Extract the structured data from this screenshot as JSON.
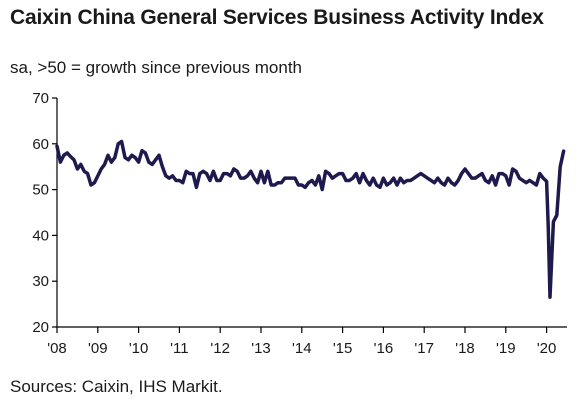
{
  "title": "Caixin China General Services Business Activity Index",
  "subtitle": "sa, >50 = growth since previous month",
  "source": "Sources: Caixin, IHS Markit.",
  "colors": {
    "line": "#1f1a4d",
    "axis": "#000000",
    "text": "#1a1a1a"
  },
  "chart_data": {
    "type": "line",
    "title": "Caixin China General Services Business Activity Index",
    "subtitle": "sa, >50 = growth since previous month",
    "xlabel": "",
    "ylabel": "",
    "xlim": [
      2008.0,
      2020.5
    ],
    "ylim": [
      20,
      70
    ],
    "yticks": [
      20,
      30,
      40,
      50,
      60,
      70
    ],
    "xticks": [
      {
        "value": 2008,
        "label": "'08"
      },
      {
        "value": 2009,
        "label": "'09"
      },
      {
        "value": 2010,
        "label": "'10"
      },
      {
        "value": 2011,
        "label": "'11"
      },
      {
        "value": 2012,
        "label": "'12"
      },
      {
        "value": 2013,
        "label": "'13"
      },
      {
        "value": 2014,
        "label": "'14"
      },
      {
        "value": 2015,
        "label": "'15"
      },
      {
        "value": 2016,
        "label": "'16"
      },
      {
        "value": 2017,
        "label": "'17"
      },
      {
        "value": 2018,
        "label": "'18"
      },
      {
        "value": 2019,
        "label": "'19"
      },
      {
        "value": 2020,
        "label": "'20"
      }
    ],
    "grid": false,
    "series": [
      {
        "points": [
          [
            2008.0,
            59.5
          ],
          [
            2008.083,
            56.0
          ],
          [
            2008.167,
            57.5
          ],
          [
            2008.25,
            58.0
          ],
          [
            2008.333,
            57.2
          ],
          [
            2008.417,
            56.5
          ],
          [
            2008.5,
            54.5
          ],
          [
            2008.583,
            55.5
          ],
          [
            2008.667,
            54.0
          ],
          [
            2008.75,
            53.5
          ],
          [
            2008.833,
            51.0
          ],
          [
            2008.917,
            51.5
          ],
          [
            2009.0,
            53.0
          ],
          [
            2009.083,
            54.5
          ],
          [
            2009.167,
            55.5
          ],
          [
            2009.25,
            57.5
          ],
          [
            2009.333,
            56.0
          ],
          [
            2009.417,
            57.0
          ],
          [
            2009.5,
            60.0
          ],
          [
            2009.583,
            60.5
          ],
          [
            2009.667,
            57.0
          ],
          [
            2009.75,
            56.5
          ],
          [
            2009.833,
            57.5
          ],
          [
            2009.917,
            57.0
          ],
          [
            2010.0,
            56.0
          ],
          [
            2010.083,
            58.5
          ],
          [
            2010.167,
            58.0
          ],
          [
            2010.25,
            56.0
          ],
          [
            2010.333,
            55.5
          ],
          [
            2010.417,
            56.5
          ],
          [
            2010.5,
            57.5
          ],
          [
            2010.583,
            55.0
          ],
          [
            2010.667,
            53.0
          ],
          [
            2010.75,
            52.5
          ],
          [
            2010.833,
            53.0
          ],
          [
            2010.917,
            52.0
          ],
          [
            2011.0,
            52.0
          ],
          [
            2011.083,
            51.5
          ],
          [
            2011.167,
            54.0
          ],
          [
            2011.25,
            53.5
          ],
          [
            2011.333,
            53.5
          ],
          [
            2011.417,
            50.5
          ],
          [
            2011.5,
            53.5
          ],
          [
            2011.583,
            54.0
          ],
          [
            2011.667,
            53.5
          ],
          [
            2011.75,
            52.0
          ],
          [
            2011.833,
            54.0
          ],
          [
            2011.917,
            52.0
          ],
          [
            2012.0,
            52.0
          ],
          [
            2012.083,
            53.5
          ],
          [
            2012.167,
            53.5
          ],
          [
            2012.25,
            53.0
          ],
          [
            2012.333,
            54.5
          ],
          [
            2012.417,
            54.0
          ],
          [
            2012.5,
            52.5
          ],
          [
            2012.583,
            52.5
          ],
          [
            2012.667,
            53.0
          ],
          [
            2012.75,
            54.0
          ],
          [
            2012.833,
            52.5
          ],
          [
            2012.917,
            51.5
          ],
          [
            2013.0,
            54.0
          ],
          [
            2013.083,
            51.5
          ],
          [
            2013.167,
            54.0
          ],
          [
            2013.25,
            51.0
          ],
          [
            2013.333,
            51.0
          ],
          [
            2013.417,
            51.5
          ],
          [
            2013.5,
            51.5
          ],
          [
            2013.583,
            52.5
          ],
          [
            2013.667,
            52.5
          ],
          [
            2013.75,
            52.5
          ],
          [
            2013.833,
            52.5
          ],
          [
            2013.917,
            51.0
          ],
          [
            2014.0,
            51.0
          ],
          [
            2014.083,
            50.5
          ],
          [
            2014.167,
            51.5
          ],
          [
            2014.25,
            52.0
          ],
          [
            2014.333,
            51.0
          ],
          [
            2014.417,
            53.0
          ],
          [
            2014.5,
            50.0
          ],
          [
            2014.583,
            54.0
          ],
          [
            2014.667,
            53.5
          ],
          [
            2014.75,
            52.5
          ],
          [
            2014.833,
            53.0
          ],
          [
            2014.917,
            53.5
          ],
          [
            2015.0,
            53.5
          ],
          [
            2015.083,
            52.0
          ],
          [
            2015.167,
            52.0
          ],
          [
            2015.25,
            52.5
          ],
          [
            2015.333,
            53.5
          ],
          [
            2015.417,
            51.5
          ],
          [
            2015.5,
            53.5
          ],
          [
            2015.583,
            52.0
          ],
          [
            2015.667,
            51.0
          ],
          [
            2015.75,
            52.5
          ],
          [
            2015.833,
            51.0
          ],
          [
            2015.917,
            50.5
          ],
          [
            2016.0,
            52.5
          ],
          [
            2016.083,
            51.0
          ],
          [
            2016.167,
            51.5
          ],
          [
            2016.25,
            52.5
          ],
          [
            2016.333,
            51.0
          ],
          [
            2016.417,
            52.5
          ],
          [
            2016.5,
            51.5
          ],
          [
            2016.583,
            52.0
          ],
          [
            2016.667,
            52.0
          ],
          [
            2016.75,
            52.5
          ],
          [
            2016.833,
            53.0
          ],
          [
            2016.917,
            53.5
          ],
          [
            2017.0,
            53.0
          ],
          [
            2017.083,
            52.5
          ],
          [
            2017.167,
            52.0
          ],
          [
            2017.25,
            51.5
          ],
          [
            2017.333,
            52.5
          ],
          [
            2017.417,
            51.5
          ],
          [
            2017.5,
            51.0
          ],
          [
            2017.583,
            52.5
          ],
          [
            2017.667,
            51.5
          ],
          [
            2017.75,
            51.0
          ],
          [
            2017.833,
            52.0
          ],
          [
            2017.917,
            53.5
          ],
          [
            2018.0,
            54.5
          ],
          [
            2018.083,
            53.5
          ],
          [
            2018.167,
            52.5
          ],
          [
            2018.25,
            52.5
          ],
          [
            2018.333,
            53.0
          ],
          [
            2018.417,
            53.5
          ],
          [
            2018.5,
            52.0
          ],
          [
            2018.583,
            51.5
          ],
          [
            2018.667,
            53.0
          ],
          [
            2018.75,
            51.0
          ],
          [
            2018.833,
            53.5
          ],
          [
            2018.917,
            53.5
          ],
          [
            2019.0,
            53.0
          ],
          [
            2019.083,
            51.0
          ],
          [
            2019.167,
            54.5
          ],
          [
            2019.25,
            54.0
          ],
          [
            2019.333,
            52.5
          ],
          [
            2019.417,
            52.0
          ],
          [
            2019.5,
            51.5
          ],
          [
            2019.583,
            52.0
          ],
          [
            2019.667,
            51.5
          ],
          [
            2019.75,
            51.0
          ],
          [
            2019.833,
            53.5
          ],
          [
            2019.917,
            52.5
          ],
          [
            2020.0,
            51.8
          ],
          [
            2020.04,
            42.0
          ],
          [
            2020.083,
            26.5
          ],
          [
            2020.167,
            43.0
          ],
          [
            2020.25,
            44.4
          ],
          [
            2020.333,
            55.0
          ],
          [
            2020.417,
            58.4
          ]
        ]
      }
    ]
  }
}
